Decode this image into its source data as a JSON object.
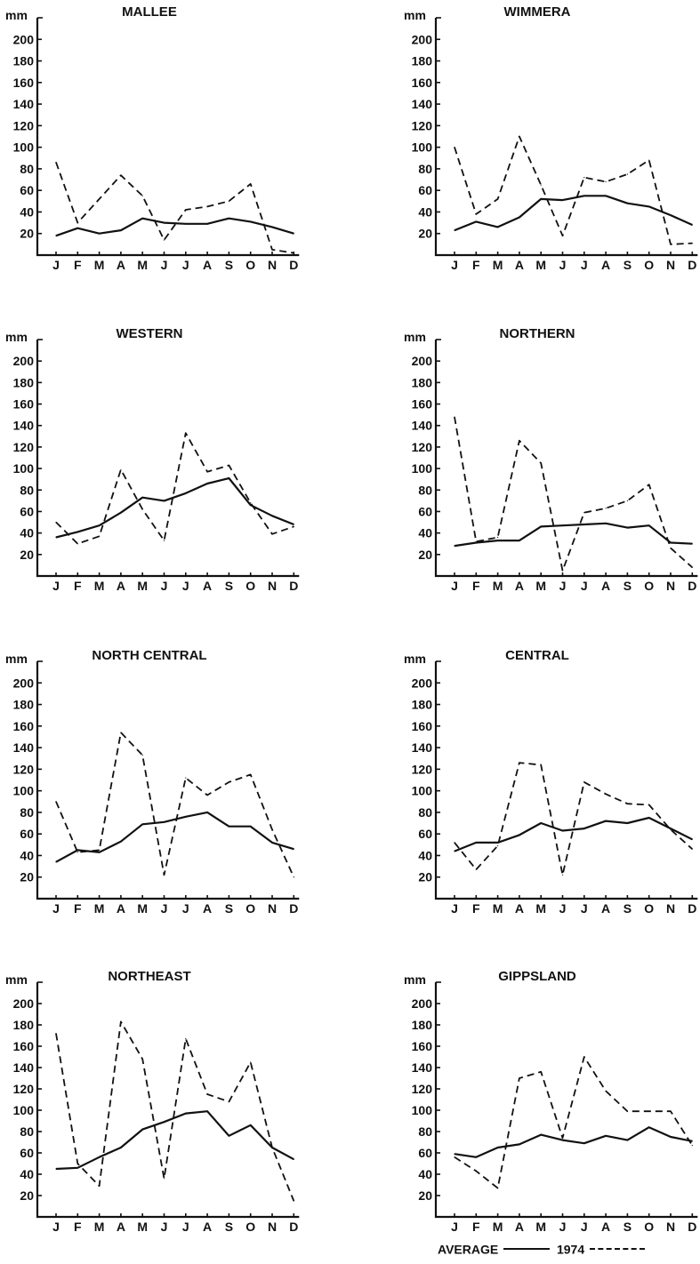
{
  "months": [
    "J",
    "F",
    "M",
    "A",
    "M",
    "J",
    "J",
    "A",
    "S",
    "O",
    "N",
    "D"
  ],
  "chart_data": [
    {
      "type": "line",
      "title": "MALLEE",
      "ylabel": "mm",
      "ylim": [
        0,
        220
      ],
      "yticks": [
        20,
        40,
        60,
        80,
        100,
        120,
        140,
        160,
        180,
        200
      ],
      "categories": [
        "J",
        "F",
        "M",
        "A",
        "M",
        "J",
        "J",
        "A",
        "S",
        "O",
        "N",
        "D"
      ],
      "series": [
        {
          "name": "AVERAGE",
          "values": [
            18,
            25,
            20,
            23,
            34,
            30,
            29,
            29,
            34,
            31,
            26,
            20
          ]
        },
        {
          "name": "1974",
          "values": [
            86,
            30,
            52,
            74,
            55,
            14,
            42,
            45,
            50,
            66,
            5,
            2
          ]
        }
      ]
    },
    {
      "type": "line",
      "title": "WIMMERA",
      "ylabel": "mm",
      "ylim": [
        0,
        220
      ],
      "yticks": [
        20,
        40,
        60,
        80,
        100,
        120,
        140,
        160,
        180,
        200
      ],
      "categories": [
        "J",
        "F",
        "M",
        "A",
        "M",
        "J",
        "J",
        "A",
        "S",
        "O",
        "N",
        "D"
      ],
      "series": [
        {
          "name": "AVERAGE",
          "values": [
            23,
            31,
            26,
            35,
            52,
            51,
            55,
            55,
            48,
            45,
            37,
            28
          ]
        },
        {
          "name": "1974",
          "values": [
            100,
            38,
            52,
            110,
            65,
            18,
            72,
            68,
            75,
            88,
            10,
            11
          ]
        }
      ]
    },
    {
      "type": "line",
      "title": "WESTERN",
      "ylabel": "mm",
      "ylim": [
        0,
        220
      ],
      "yticks": [
        20,
        40,
        60,
        80,
        100,
        120,
        140,
        160,
        180,
        200
      ],
      "categories": [
        "J",
        "F",
        "M",
        "A",
        "M",
        "J",
        "J",
        "A",
        "S",
        "O",
        "N",
        "D"
      ],
      "series": [
        {
          "name": "AVERAGE",
          "values": [
            36,
            41,
            47,
            59,
            73,
            70,
            77,
            86,
            91,
            66,
            56,
            48
          ]
        },
        {
          "name": "1974",
          "values": [
            50,
            30,
            37,
            99,
            62,
            33,
            133,
            97,
            103,
            68,
            39,
            46
          ]
        }
      ]
    },
    {
      "type": "line",
      "title": "NORTHERN",
      "ylabel": "mm",
      "ylim": [
        0,
        220
      ],
      "yticks": [
        20,
        40,
        60,
        80,
        100,
        120,
        140,
        160,
        180,
        200
      ],
      "categories": [
        "J",
        "F",
        "M",
        "A",
        "M",
        "J",
        "J",
        "A",
        "S",
        "O",
        "N",
        "D"
      ],
      "series": [
        {
          "name": "AVERAGE",
          "values": [
            28,
            31,
            33,
            33,
            46,
            47,
            48,
            49,
            45,
            47,
            31,
            30
          ]
        },
        {
          "name": "1974",
          "values": [
            148,
            32,
            36,
            126,
            105,
            5,
            59,
            63,
            70,
            85,
            26,
            8
          ]
        }
      ]
    },
    {
      "type": "line",
      "title": "NORTH CENTRAL",
      "ylabel": "mm",
      "ylim": [
        0,
        220
      ],
      "yticks": [
        20,
        40,
        60,
        80,
        100,
        120,
        140,
        160,
        180,
        200
      ],
      "categories": [
        "J",
        "F",
        "M",
        "A",
        "M",
        "J",
        "J",
        "A",
        "S",
        "O",
        "N",
        "D"
      ],
      "series": [
        {
          "name": "AVERAGE",
          "values": [
            34,
            45,
            43,
            53,
            69,
            71,
            76,
            80,
            67,
            67,
            52,
            46
          ]
        },
        {
          "name": "1974",
          "values": [
            90,
            43,
            45,
            154,
            133,
            22,
            112,
            96,
            108,
            115,
            64,
            20
          ]
        }
      ]
    },
    {
      "type": "line",
      "title": "CENTRAL",
      "ylabel": "mm",
      "ylim": [
        0,
        220
      ],
      "yticks": [
        20,
        40,
        60,
        80,
        100,
        120,
        140,
        160,
        180,
        200
      ],
      "categories": [
        "J",
        "F",
        "M",
        "A",
        "M",
        "J",
        "J",
        "A",
        "S",
        "O",
        "N",
        "D"
      ],
      "series": [
        {
          "name": "AVERAGE",
          "values": [
            44,
            52,
            52,
            59,
            70,
            63,
            65,
            72,
            70,
            75,
            65,
            55
          ]
        },
        {
          "name": "1974",
          "values": [
            52,
            27,
            49,
            126,
            124,
            22,
            108,
            97,
            88,
            87,
            64,
            46
          ]
        }
      ]
    },
    {
      "type": "line",
      "title": "NORTHEAST",
      "ylabel": "mm",
      "ylim": [
        0,
        220
      ],
      "yticks": [
        20,
        40,
        60,
        80,
        100,
        120,
        140,
        160,
        180,
        200
      ],
      "categories": [
        "J",
        "F",
        "M",
        "A",
        "M",
        "J",
        "J",
        "A",
        "S",
        "O",
        "N",
        "D"
      ],
      "series": [
        {
          "name": "AVERAGE",
          "values": [
            45,
            46,
            56,
            65,
            82,
            89,
            97,
            99,
            76,
            86,
            65,
            54
          ]
        },
        {
          "name": "1974",
          "values": [
            172,
            50,
            29,
            183,
            148,
            36,
            167,
            115,
            108,
            145,
            65,
            15
          ]
        }
      ]
    },
    {
      "type": "line",
      "title": "GIPPSLAND",
      "ylabel": "mm",
      "ylim": [
        0,
        220
      ],
      "yticks": [
        20,
        40,
        60,
        80,
        100,
        120,
        140,
        160,
        180,
        200
      ],
      "categories": [
        "J",
        "F",
        "M",
        "A",
        "M",
        "J",
        "J",
        "A",
        "S",
        "O",
        "N",
        "D"
      ],
      "series": [
        {
          "name": "AVERAGE",
          "values": [
            59,
            56,
            65,
            68,
            77,
            72,
            69,
            76,
            72,
            84,
            75,
            71
          ]
        },
        {
          "name": "1974",
          "values": [
            56,
            43,
            27,
            130,
            136,
            74,
            150,
            118,
            99,
            99,
            99,
            67
          ]
        }
      ]
    }
  ],
  "legend": {
    "average": "AVERAGE",
    "year": "1974"
  }
}
